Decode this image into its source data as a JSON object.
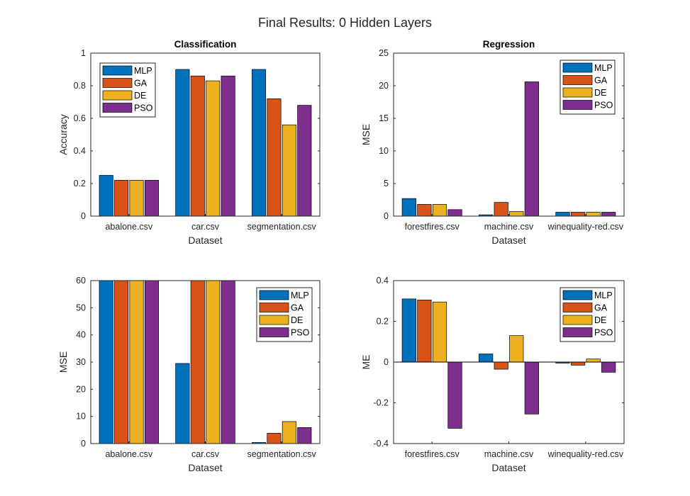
{
  "figure_title": "Final Results: 0 Hidden Layers",
  "colors": {
    "MLP": "#0072BD",
    "GA": "#D95319",
    "DE": "#EDB120",
    "PSO": "#7E2F8E"
  },
  "chart_data": [
    {
      "type": "bar",
      "title": "Classification",
      "xlabel": "Dataset",
      "ylabel": "Accuracy",
      "categories": [
        "abalone.csv",
        "car.csv",
        "segmentation.csv"
      ],
      "ylim": [
        0,
        1
      ],
      "yticks": [
        0,
        0.2,
        0.4,
        0.6,
        0.8,
        1
      ],
      "ytick_labels": [
        "0",
        "0.2",
        "0.4",
        "0.6",
        "0.8",
        "1"
      ],
      "legend_position": "top-left",
      "series": [
        {
          "name": "MLP",
          "values": [
            0.25,
            0.9,
            0.9
          ]
        },
        {
          "name": "GA",
          "values": [
            0.22,
            0.86,
            0.72
          ]
        },
        {
          "name": "DE",
          "values": [
            0.22,
            0.83,
            0.56
          ]
        },
        {
          "name": "PSO",
          "values": [
            0.22,
            0.86,
            0.68
          ]
        }
      ]
    },
    {
      "type": "bar",
      "title": "Regression",
      "xlabel": "Dataset",
      "ylabel": "MSE",
      "categories": [
        "forestfires.csv",
        "machine.csv",
        "winequality-red.csv"
      ],
      "ylim": [
        0,
        25
      ],
      "yticks": [
        0,
        5,
        10,
        15,
        20,
        25
      ],
      "ytick_labels": [
        "0",
        "5",
        "10",
        "15",
        "20",
        "25"
      ],
      "legend_position": "top-right",
      "series": [
        {
          "name": "MLP",
          "values": [
            2.7,
            0.2,
            0.6
          ]
        },
        {
          "name": "GA",
          "values": [
            1.8,
            2.1,
            0.6
          ]
        },
        {
          "name": "DE",
          "values": [
            1.8,
            0.7,
            0.6
          ]
        },
        {
          "name": "PSO",
          "values": [
            1.0,
            20.6,
            0.6
          ]
        }
      ]
    },
    {
      "type": "bar",
      "title": "",
      "xlabel": "Dataset",
      "ylabel": "MSE",
      "categories": [
        "abalone.csv",
        "car.csv",
        "segmentation.csv"
      ],
      "ylim": [
        0,
        60
      ],
      "yticks": [
        0,
        10,
        20,
        30,
        40,
        50,
        60
      ],
      "ytick_labels": [
        "0",
        "10",
        "20",
        "30",
        "40",
        "50",
        "60"
      ],
      "legend_position": "top-right",
      "series": [
        {
          "name": "MLP",
          "values": [
            60,
            29.5,
            0.4
          ]
        },
        {
          "name": "GA",
          "values": [
            60,
            60,
            3.8
          ]
        },
        {
          "name": "DE",
          "values": [
            60,
            60,
            8.1
          ]
        },
        {
          "name": "PSO",
          "values": [
            60,
            60,
            5.9
          ]
        }
      ]
    },
    {
      "type": "bar",
      "title": "",
      "xlabel": "Dataset",
      "ylabel": "ME",
      "categories": [
        "forestfires.csv",
        "machine.csv",
        "winequality-red.csv"
      ],
      "ylim": [
        -0.4,
        0.4
      ],
      "yticks": [
        -0.4,
        -0.2,
        0,
        0.2,
        0.4
      ],
      "ytick_labels": [
        "-0.4",
        "-0.2",
        "0",
        "0.2",
        "0.4"
      ],
      "legend_position": "top-right",
      "series": [
        {
          "name": "MLP",
          "values": [
            0.31,
            0.04,
            -0.005
          ]
        },
        {
          "name": "GA",
          "values": [
            0.305,
            -0.035,
            -0.015
          ]
        },
        {
          "name": "DE",
          "values": [
            0.295,
            0.13,
            0.015
          ]
        },
        {
          "name": "PSO",
          "values": [
            -0.325,
            -0.255,
            -0.05
          ]
        }
      ]
    }
  ]
}
